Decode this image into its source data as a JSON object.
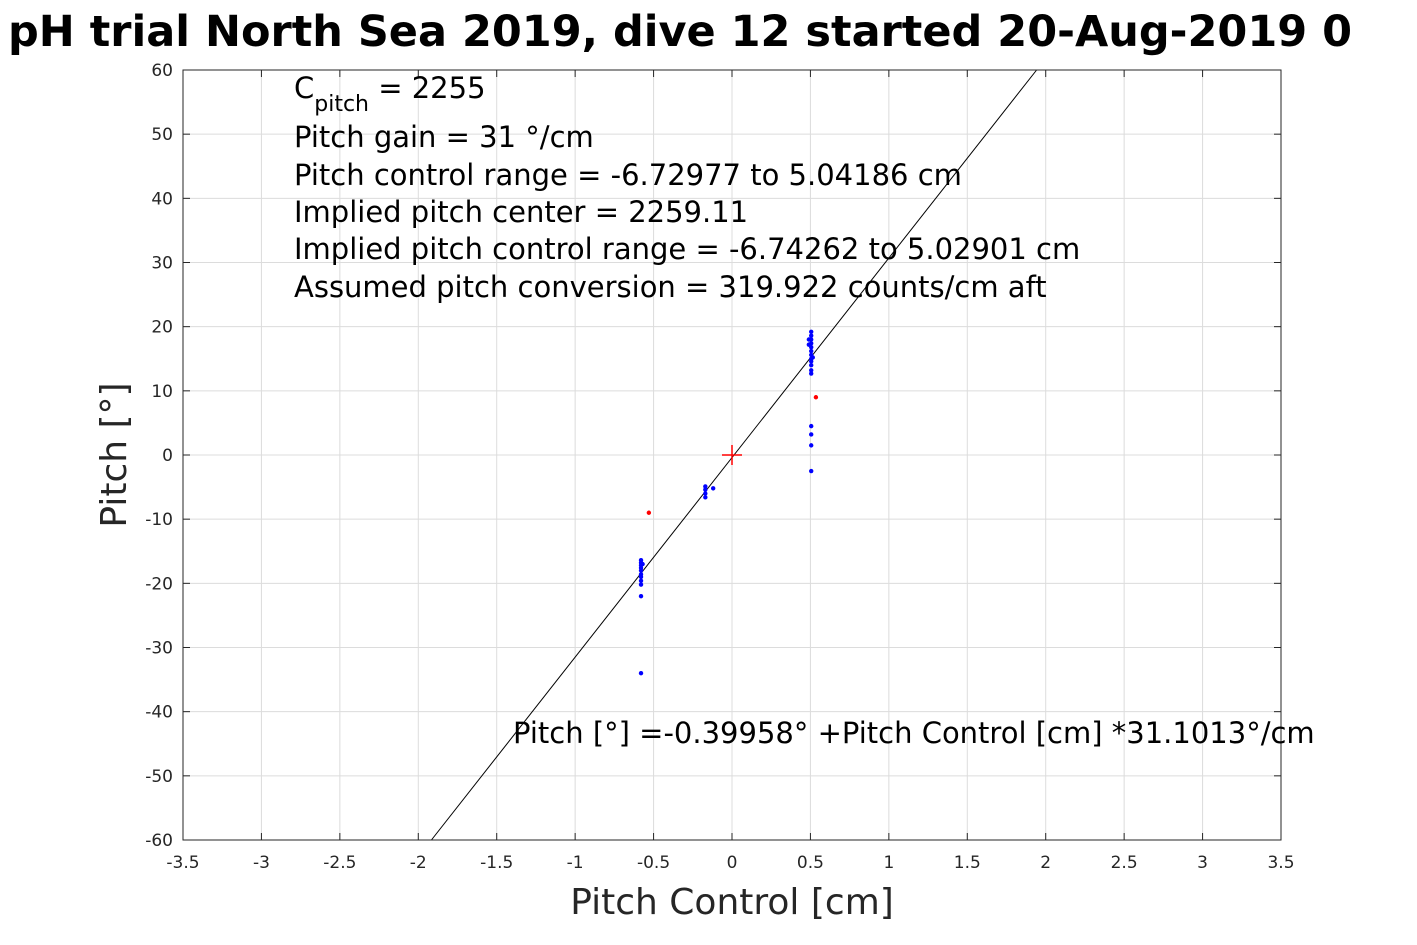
{
  "chart_data": {
    "type": "scatter",
    "title": "pH trial North Sea 2019, dive 12 started 20-Aug-2019 0",
    "xlabel": "Pitch Control [cm]",
    "ylabel": "Pitch [°]",
    "xlim": [
      -3.5,
      3.5
    ],
    "ylim": [
      -60,
      60
    ],
    "xticks": [
      "-3.5",
      "-3",
      "-2.5",
      "-2",
      "-1.5",
      "-1",
      "-0.5",
      "0",
      "0.5",
      "1",
      "1.5",
      "2",
      "2.5",
      "3",
      "3.5"
    ],
    "xtick_values": [
      -3.5,
      -3,
      -2.5,
      -2,
      -1.5,
      -1,
      -0.5,
      0,
      0.5,
      1,
      1.5,
      2,
      2.5,
      3,
      3.5
    ],
    "yticks": [
      "60",
      "50",
      "40",
      "30",
      "20",
      "10",
      "0",
      "-10",
      "-20",
      "-30",
      "-40",
      "-50",
      "-60"
    ],
    "ytick_values": [
      60,
      50,
      40,
      30,
      20,
      10,
      0,
      -10,
      -20,
      -30,
      -40,
      -50,
      -60
    ],
    "grid": true,
    "annotations": {
      "c_pitch_main": "C",
      "c_pitch_sub": "pitch",
      "c_pitch_value": " = 2255",
      "pitch_gain": "Pitch gain = 31 °/cm",
      "pitch_control_range": "Pitch control range = -6.72977 to 5.04186 cm",
      "implied_pitch_center": "Implied pitch center = 2259.11",
      "implied_pitch_control_range": "Implied pitch control range = -6.74262 to 5.02901 cm",
      "assumed_pitch_conversion": "Assumed pitch conversion = 319.922 counts/cm aft",
      "fit_equation": "Pitch [°] =-0.39958° +Pitch Control [cm] *31.1013°/cm"
    },
    "fit_line": {
      "intercept": -0.39958,
      "slope": 31.1013,
      "color": "#000000"
    },
    "center_marker": {
      "x": 0,
      "y": 0,
      "color": "#ff0000"
    },
    "series": [
      {
        "color": "#0000ff",
        "points": [
          [
            -0.58,
            -34
          ],
          [
            -0.58,
            -22
          ],
          [
            -0.58,
            -20.2
          ],
          [
            -0.58,
            -19.6
          ],
          [
            -0.58,
            -19
          ],
          [
            -0.58,
            -18.6
          ],
          [
            -0.58,
            -18
          ],
          [
            -0.58,
            -17.6
          ],
          [
            -0.58,
            -17.2
          ],
          [
            -0.58,
            -16.8
          ],
          [
            -0.58,
            -16.4
          ],
          [
            -0.57,
            -17
          ],
          [
            -0.17,
            -6.6
          ],
          [
            -0.17,
            -6
          ],
          [
            -0.17,
            -5.4
          ],
          [
            -0.17,
            -4.9
          ],
          [
            -0.12,
            -5.2
          ],
          [
            0.505,
            -2.5
          ],
          [
            0.505,
            1.5
          ],
          [
            0.505,
            3.2
          ],
          [
            0.505,
            4.5
          ],
          [
            0.505,
            12.7
          ],
          [
            0.505,
            13.2
          ],
          [
            0.505,
            14
          ],
          [
            0.505,
            14.6
          ],
          [
            0.505,
            15
          ],
          [
            0.505,
            15.6
          ],
          [
            0.505,
            16.2
          ],
          [
            0.505,
            16.8
          ],
          [
            0.505,
            17.4
          ],
          [
            0.505,
            18
          ],
          [
            0.505,
            18.6
          ],
          [
            0.505,
            19.2
          ],
          [
            0.49,
            17.2
          ],
          [
            0.49,
            18
          ],
          [
            0.515,
            15.2
          ]
        ]
      },
      {
        "color": "#ff0000",
        "points": [
          [
            -0.53,
            -9
          ],
          [
            0.535,
            9
          ]
        ]
      }
    ]
  }
}
